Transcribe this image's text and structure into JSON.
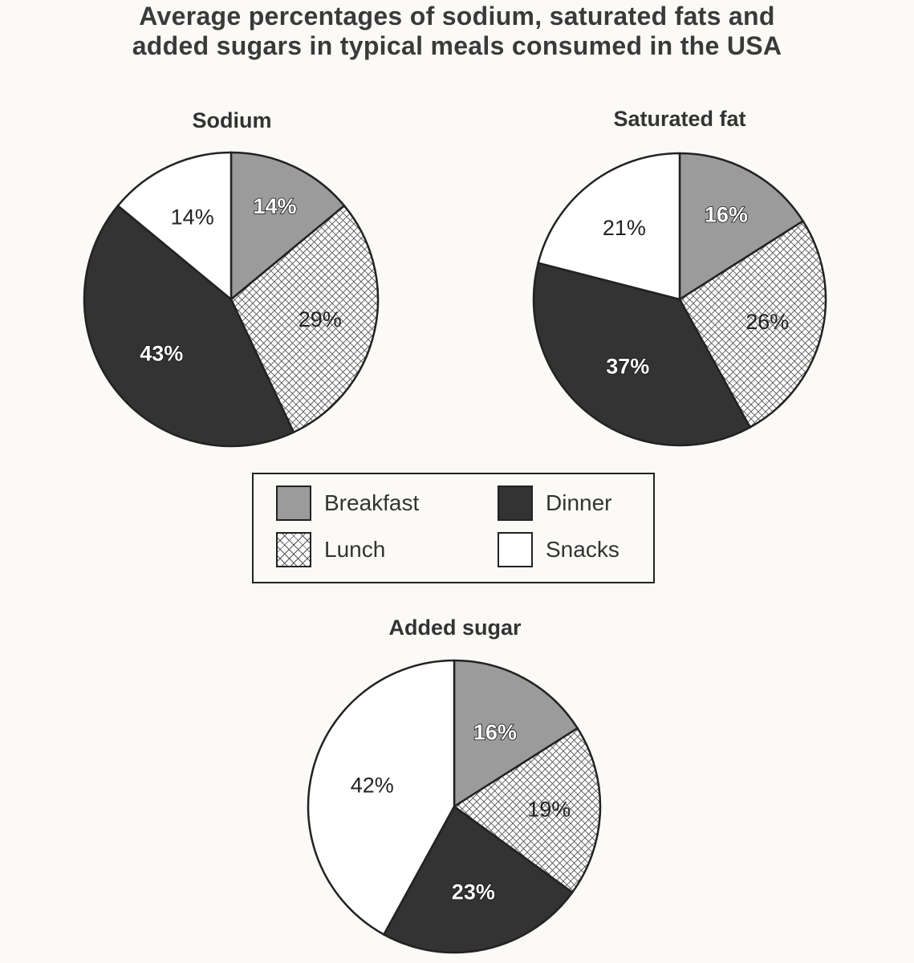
{
  "title_lines": [
    "Average percentages of sodium, saturated fats and",
    "added sugars in typical meals consumed in the USA"
  ],
  "colors": {
    "breakfast": "#9b9b9b",
    "lunch": "#ffffff",
    "dinner": "#333333",
    "snacks": "#ffffff",
    "outline": "#222222"
  },
  "legend": {
    "breakfast": "Breakfast",
    "dinner": "Dinner",
    "lunch": "Lunch",
    "snacks": "Snacks"
  },
  "chart_data": [
    {
      "type": "pie",
      "title": "Sodium",
      "categories": [
        "Breakfast",
        "Lunch",
        "Dinner",
        "Snacks"
      ],
      "values": [
        14,
        29,
        43,
        14
      ],
      "labels": [
        "14%",
        "29%",
        "43%",
        "14%"
      ]
    },
    {
      "type": "pie",
      "title": "Saturated fat",
      "categories": [
        "Breakfast",
        "Lunch",
        "Dinner",
        "Snacks"
      ],
      "values": [
        16,
        26,
        37,
        21
      ],
      "labels": [
        "16%",
        "26%",
        "37%",
        "21%"
      ]
    },
    {
      "type": "pie",
      "title": "Added sugar",
      "categories": [
        "Breakfast",
        "Lunch",
        "Dinner",
        "Snacks"
      ],
      "values": [
        16,
        19,
        23,
        42
      ],
      "labels": [
        "16%",
        "19%",
        "23%",
        "42%"
      ]
    }
  ]
}
